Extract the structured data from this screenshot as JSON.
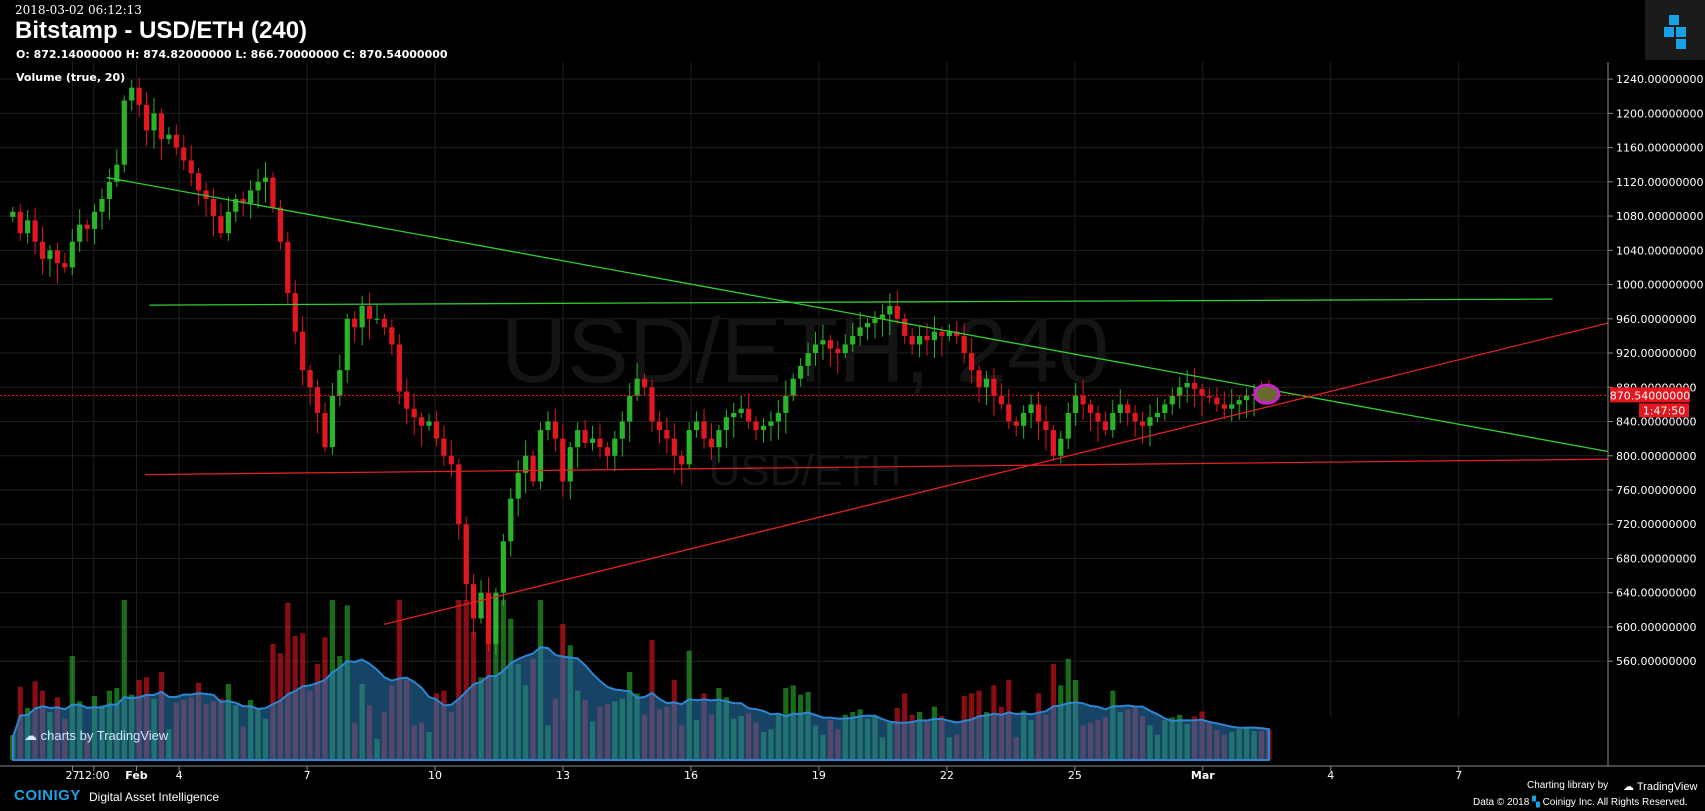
{
  "header": {
    "timestamp": "2018-03-02 06:12:13",
    "title": "Bitstamp - USD/ETH (240)",
    "ohlc": "O: 872.14000000 H: 874.82000000 L: 866.70000000 C: 870.54000000",
    "study": "Volume (true, 20)"
  },
  "watermark": {
    "big": "USD/ETH, 240",
    "small": "USD/ETH"
  },
  "footer": {
    "brand": "COINIGY",
    "tagline": "Digital Asset Intelligence",
    "charting_library": "Charting library by",
    "tradingview": "TradingView",
    "copyright": "Data © 2018",
    "copyright2": "Coinigy Inc. All Rights Reserved.",
    "tv_badge": "charts by TradingView"
  },
  "colors": {
    "up": "#2bb32b",
    "down": "#e3171f",
    "grid": "#1f1f1f",
    "trend_green": "#33cc33",
    "trend_red": "#dd2222",
    "volume_ma": "#2a7ab8",
    "highlight": "#cc22cc",
    "brand": "#17a2e6"
  },
  "chart_data": {
    "type": "candlestick",
    "symbol": "USD/ETH",
    "exchange": "Bitstamp",
    "interval": "240",
    "yaxis": {
      "ylim": [
        510,
        1260
      ],
      "ticks": [
        "1240.00000000",
        "1200.00000000",
        "1160.00000000",
        "1120.00000000",
        "1080.00000000",
        "1040.00000000",
        "1000.00000000",
        "960.00000000",
        "920.00000000",
        "880.00000000",
        "840.00000000",
        "800.00000000",
        "760.00000000",
        "720.00000000",
        "680.00000000",
        "640.00000000",
        "600.00000000",
        "560.00000000"
      ],
      "tick_values": [
        1240,
        1200,
        1160,
        1120,
        1080,
        1040,
        1000,
        960,
        920,
        880,
        840,
        800,
        760,
        720,
        680,
        640,
        600,
        560
      ]
    },
    "xaxis": {
      "ticks": [
        "27",
        "12:00",
        "Feb",
        "4",
        "7",
        "10",
        "13",
        "16",
        "19",
        "22",
        "25",
        "Mar",
        "4",
        "7"
      ],
      "tick_t": [
        0.5,
        1.0,
        2.0,
        3.0,
        6.0,
        9.0,
        12.0,
        15.0,
        18.0,
        21.0,
        24.0,
        27.0,
        30.0,
        33.0
      ]
    },
    "x_range": [
      -1.2,
      36.5
    ],
    "last_price": {
      "label": "870.54000000",
      "value": 870.54
    },
    "countdown": "1:47:50",
    "trendlines": [
      {
        "color": "green",
        "from": [
          1.3,
          1125
        ],
        "to": [
          36.5,
          805
        ]
      },
      {
        "color": "green",
        "from": [
          2.3,
          976
        ],
        "to": [
          35.2,
          983
        ]
      },
      {
        "color": "red",
        "from": [
          2.2,
          778
        ],
        "to": [
          36.5,
          796
        ]
      },
      {
        "color": "red",
        "from": [
          7.8,
          603
        ],
        "to": [
          36.5,
          955
        ]
      }
    ],
    "highlight_circle": {
      "t": 28.5,
      "price": 872
    },
    "closes": [
      1085,
      1060,
      1075,
      1050,
      1030,
      1040,
      1025,
      1020,
      1050,
      1070,
      1065,
      1085,
      1100,
      1120,
      1140,
      1215,
      1230,
      1210,
      1180,
      1200,
      1170,
      1175,
      1160,
      1145,
      1130,
      1110,
      1100,
      1080,
      1060,
      1085,
      1100,
      1095,
      1110,
      1120,
      1125,
      1090,
      1050,
      990,
      945,
      900,
      880,
      850,
      810,
      870,
      900,
      960,
      950,
      975,
      960,
      960,
      950,
      930,
      875,
      855,
      845,
      835,
      840,
      820,
      800,
      790,
      720,
      650,
      610,
      640,
      580,
      640,
      700,
      750,
      780,
      800,
      770,
      830,
      840,
      820,
      770,
      810,
      830,
      815,
      820,
      810,
      800,
      820,
      840,
      870,
      890,
      880,
      840,
      830,
      820,
      800,
      790,
      830,
      840,
      820,
      810,
      830,
      845,
      850,
      855,
      840,
      830,
      835,
      840,
      850,
      870,
      890,
      905,
      920,
      930,
      935,
      925,
      920,
      930,
      940,
      950,
      955,
      960,
      965,
      975,
      960,
      940,
      930,
      940,
      935,
      945,
      940,
      945,
      940,
      920,
      900,
      880,
      890,
      870,
      860,
      840,
      835,
      850,
      860,
      840,
      830,
      800,
      820,
      850,
      870,
      860,
      850,
      840,
      830,
      850,
      860,
      850,
      840,
      835,
      845,
      850,
      860,
      870,
      880,
      885,
      878,
      870,
      868,
      860,
      855,
      860,
      865,
      870,
      872,
      871,
      870.54
    ]
  }
}
